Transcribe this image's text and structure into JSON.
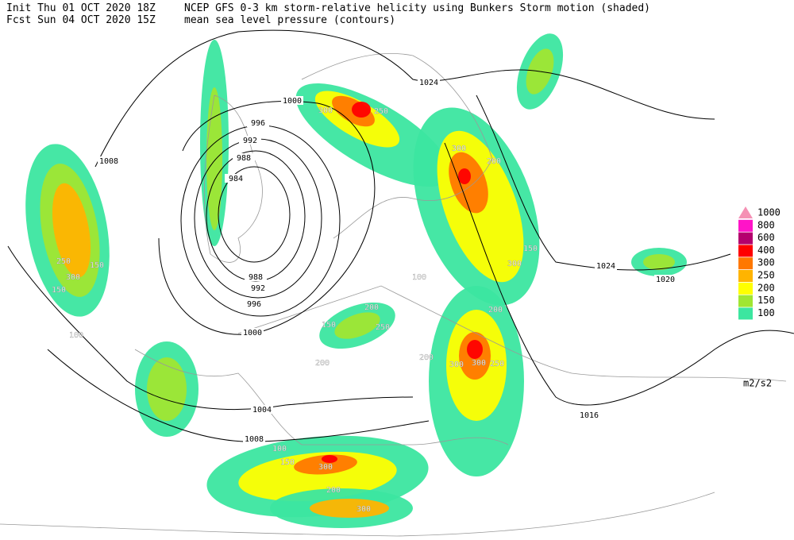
{
  "header": {
    "init": "Init  Thu 01 OCT 2020 18Z",
    "fcst": "Fcst Sun 04 OCT 2020 15Z",
    "field_shaded": "NCEP GFS 0-3 km storm-relative helicity using Bunkers Storm motion (shaded)",
    "field_contours": "mean sea level pressure (contours)"
  },
  "legend": {
    "levels": [
      1000,
      800,
      600,
      400,
      300,
      250,
      200,
      150,
      100
    ],
    "colors": [
      "#f590b4",
      "#ff14c8",
      "#b4006e",
      "#ff0000",
      "#ff7800",
      "#ffb400",
      "#ffff00",
      "#a0e632",
      "#3ce6a0"
    ],
    "unit": "m2/s2"
  },
  "isobar_labels": [
    1024,
    1000,
    996,
    992,
    988,
    984,
    1008,
    1024,
    1020,
    988,
    992,
    996,
    1000,
    1004,
    1008,
    1016
  ],
  "helicity_labels": [
    250,
    300,
    150,
    150,
    100,
    300,
    250,
    300,
    200,
    300,
    150,
    300,
    250,
    300,
    200,
    200,
    150,
    300,
    200,
    300,
    100,
    150,
    200,
    100,
    200,
    250
  ]
}
